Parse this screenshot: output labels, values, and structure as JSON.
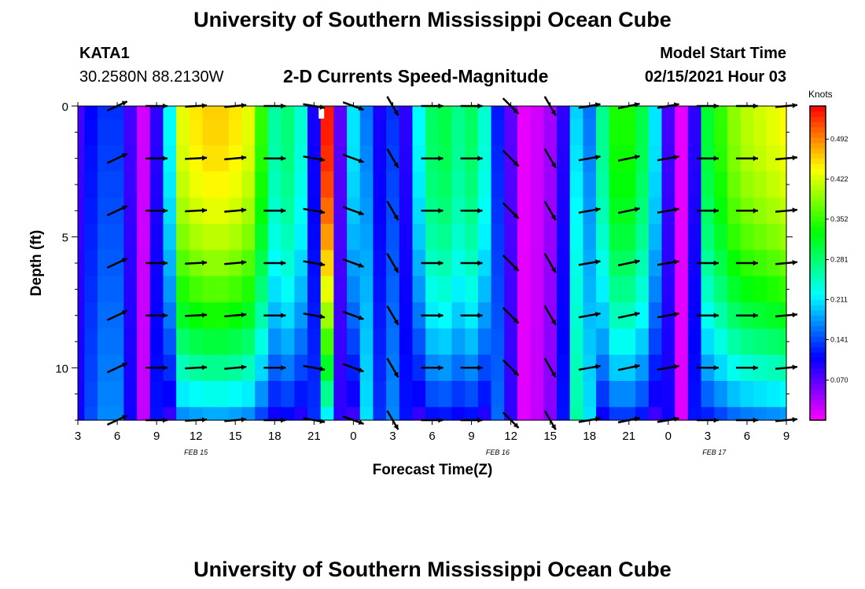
{
  "header": {
    "title_top": "University of Southern Mississippi Ocean Cube",
    "station_id": "KATA1",
    "station_coords": "30.2580N 88.2130W",
    "plot_title": "2-D Currents Speed-Magnitude",
    "model_label": "Model Start Time",
    "model_time": "02/15/2021 Hour 03"
  },
  "footer": {
    "title_bottom": "University of Southern Mississippi Ocean Cube"
  },
  "chart_data": {
    "type": "heatmap",
    "title": "2-D Currents Speed-Magnitude",
    "xlabel": "Forecast Time(Z)",
    "ylabel": "Depth (ft)",
    "x_hours": [
      3,
      4,
      5,
      6,
      7,
      8,
      9,
      10,
      11,
      12,
      13,
      14,
      15,
      16,
      17,
      18,
      19,
      20,
      21,
      22,
      23,
      24,
      25,
      26,
      27,
      28,
      29,
      30,
      31,
      32,
      33,
      34,
      35,
      36,
      37,
      38,
      39,
      40,
      41,
      42,
      43,
      44,
      45,
      46,
      47,
      48,
      49,
      50,
      51,
      52,
      53,
      54,
      55,
      56,
      57
    ],
    "x_ticks": [
      {
        "hour": 3,
        "label": "3"
      },
      {
        "hour": 6,
        "label": "6"
      },
      {
        "hour": 9,
        "label": "9"
      },
      {
        "hour": 12,
        "label": "12"
      },
      {
        "hour": 15,
        "label": "15"
      },
      {
        "hour": 18,
        "label": "18"
      },
      {
        "hour": 21,
        "label": "21"
      },
      {
        "hour": 24,
        "label": "0"
      },
      {
        "hour": 27,
        "label": "3"
      },
      {
        "hour": 30,
        "label": "6"
      },
      {
        "hour": 33,
        "label": "9"
      },
      {
        "hour": 36,
        "label": "12"
      },
      {
        "hour": 39,
        "label": "15"
      },
      {
        "hour": 42,
        "label": "18"
      },
      {
        "hour": 45,
        "label": "21"
      },
      {
        "hour": 48,
        "label": "0"
      },
      {
        "hour": 51,
        "label": "3"
      },
      {
        "hour": 54,
        "label": "6"
      },
      {
        "hour": 57,
        "label": "9"
      }
    ],
    "date_labels": [
      {
        "hour": 12,
        "label": "FEB 15"
      },
      {
        "hour": 35,
        "label": "FEB 16"
      },
      {
        "hour": 51.5,
        "label": "FEB 17"
      }
    ],
    "xlim": [
      3,
      57
    ],
    "ylim": [
      0,
      12
    ],
    "y_ticks": [
      0,
      5,
      10
    ],
    "depths_ft": [
      0,
      1,
      2,
      3,
      4,
      5,
      6,
      7,
      8,
      9,
      10,
      11,
      12
    ],
    "surface_speed_knots": [
      0.08,
      0.11,
      0.13,
      0.13,
      0.08,
      0.02,
      0.09,
      0.22,
      0.43,
      0.45,
      0.46,
      0.46,
      0.45,
      0.43,
      0.35,
      0.26,
      0.28,
      0.24,
      0.1,
      0.54,
      0.07,
      0.21,
      0.16,
      0.1,
      0.13,
      0.09,
      0.22,
      0.29,
      0.3,
      0.27,
      0.29,
      0.24,
      0.12,
      0.07,
      0.01,
      0.02,
      0.04,
      0.09,
      0.2,
      0.16,
      0.27,
      0.34,
      0.34,
      0.3,
      0.21,
      0.08,
      0.01,
      0.09,
      0.31,
      0.35,
      0.39,
      0.41,
      0.42,
      0.43,
      0.44
    ],
    "arrow_times": [
      6,
      9,
      12,
      15,
      18,
      21,
      24,
      27,
      30,
      33,
      36,
      39,
      42,
      45,
      48,
      51,
      54,
      57
    ],
    "arrow_depths_ft": [
      0,
      2,
      4,
      6,
      8,
      10,
      12
    ],
    "arrow_directions_deg": [
      25,
      0,
      3,
      5,
      0,
      -10,
      -20,
      -60,
      0,
      0,
      -45,
      -60,
      10,
      12,
      10,
      0,
      0,
      5
    ],
    "colorbar": {
      "unit": "Knots",
      "min": 0.0,
      "max": 0.55,
      "ticks": [
        0.07,
        0.141,
        0.211,
        0.281,
        0.352,
        0.422,
        0.492
      ],
      "tick_labels": [
        "0.070",
        "0.141",
        "0.211",
        "0.281",
        "0.352",
        "0.422",
        "0.492"
      ]
    },
    "colors": {
      "frame": "#000000",
      "missing_cell": "#ffffff"
    }
  }
}
